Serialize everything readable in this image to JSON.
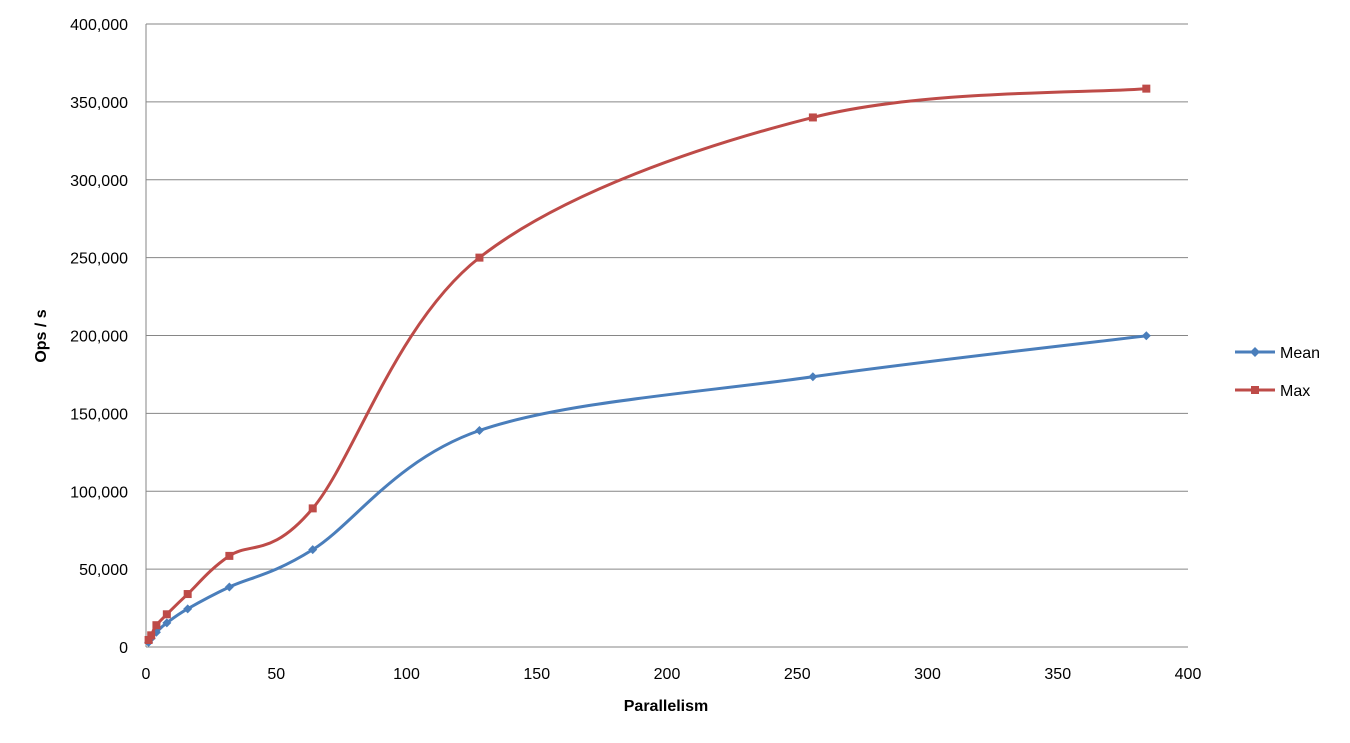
{
  "chart_data": {
    "type": "line",
    "title": "",
    "xlabel": "Parallelism",
    "ylabel": "Ops / s",
    "xlim": [
      0,
      400
    ],
    "ylim": [
      0,
      400000
    ],
    "xticks": [
      0,
      50,
      100,
      150,
      200,
      250,
      300,
      350,
      400
    ],
    "xtick_labels": [
      "0",
      "50",
      "100",
      "150",
      "200",
      "250",
      "300",
      "350",
      "400"
    ],
    "yticks": [
      0,
      50000,
      100000,
      150000,
      200000,
      250000,
      300000,
      350000,
      400000
    ],
    "ytick_labels": [
      "0",
      "50,000",
      "100,000",
      "150,000",
      "200,000",
      "250,000",
      "300,000",
      "350,000",
      "400,000"
    ],
    "grid": "horizontal",
    "smooth": true,
    "legend_position": "right",
    "x": [
      1,
      2,
      4,
      8,
      16,
      32,
      64,
      128,
      256,
      384
    ],
    "series": [
      {
        "name": "Mean",
        "color": "#4a7ebb",
        "marker": "diamond",
        "values": [
          3000,
          5500,
          9500,
          15500,
          24500,
          38500,
          62500,
          139000,
          173500,
          199800
        ]
      },
      {
        "name": "Max",
        "color": "#be4b48",
        "marker": "square",
        "values": [
          4500,
          7500,
          14000,
          21000,
          34000,
          58500,
          89000,
          250000,
          340000,
          358500
        ]
      }
    ]
  }
}
